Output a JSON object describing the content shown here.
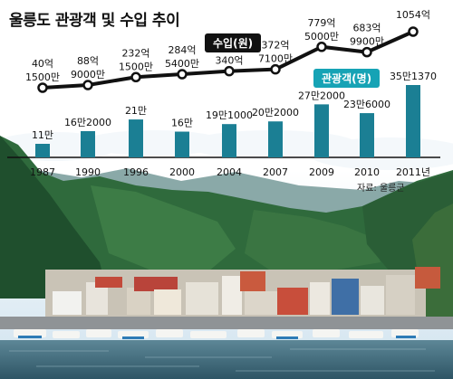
{
  "title": "울릉도 관광객 및 수입 추이",
  "source": "자료: 울릉군",
  "chart_data": {
    "type": "bar+line",
    "categories": [
      "1987",
      "1990",
      "1996",
      "2000",
      "2004",
      "2007",
      "2009",
      "2010",
      "2011년"
    ],
    "series": [
      {
        "name": "수입(원)",
        "type": "line",
        "unit": "억원",
        "values": [
          40.15,
          88.9,
          232.15,
          284.54,
          340,
          372.71,
          779.5,
          683.99,
          1054
        ],
        "labels": [
          [
            "40억",
            "1500만"
          ],
          [
            "88억",
            "9000만"
          ],
          [
            "232억",
            "1500만"
          ],
          [
            "284억",
            "5400만"
          ],
          [
            "340억"
          ],
          [
            "372억",
            "7100만"
          ],
          [
            "779억",
            "5000만"
          ],
          [
            "683억",
            "9900만"
          ],
          [
            "1054억"
          ]
        ],
        "color": "#111111"
      },
      {
        "name": "관광객(명)",
        "type": "bar",
        "unit": "명",
        "values": [
          110000,
          162000,
          210000,
          160000,
          191000,
          202000,
          272000,
          236000,
          351370
        ],
        "labels": [
          "11만",
          "16만2000",
          "21만",
          "16만",
          "19만1000",
          "20만2000",
          "27만2000",
          "23만6000",
          "35만1370"
        ],
        "color": "#1b7f94"
      }
    ]
  }
}
